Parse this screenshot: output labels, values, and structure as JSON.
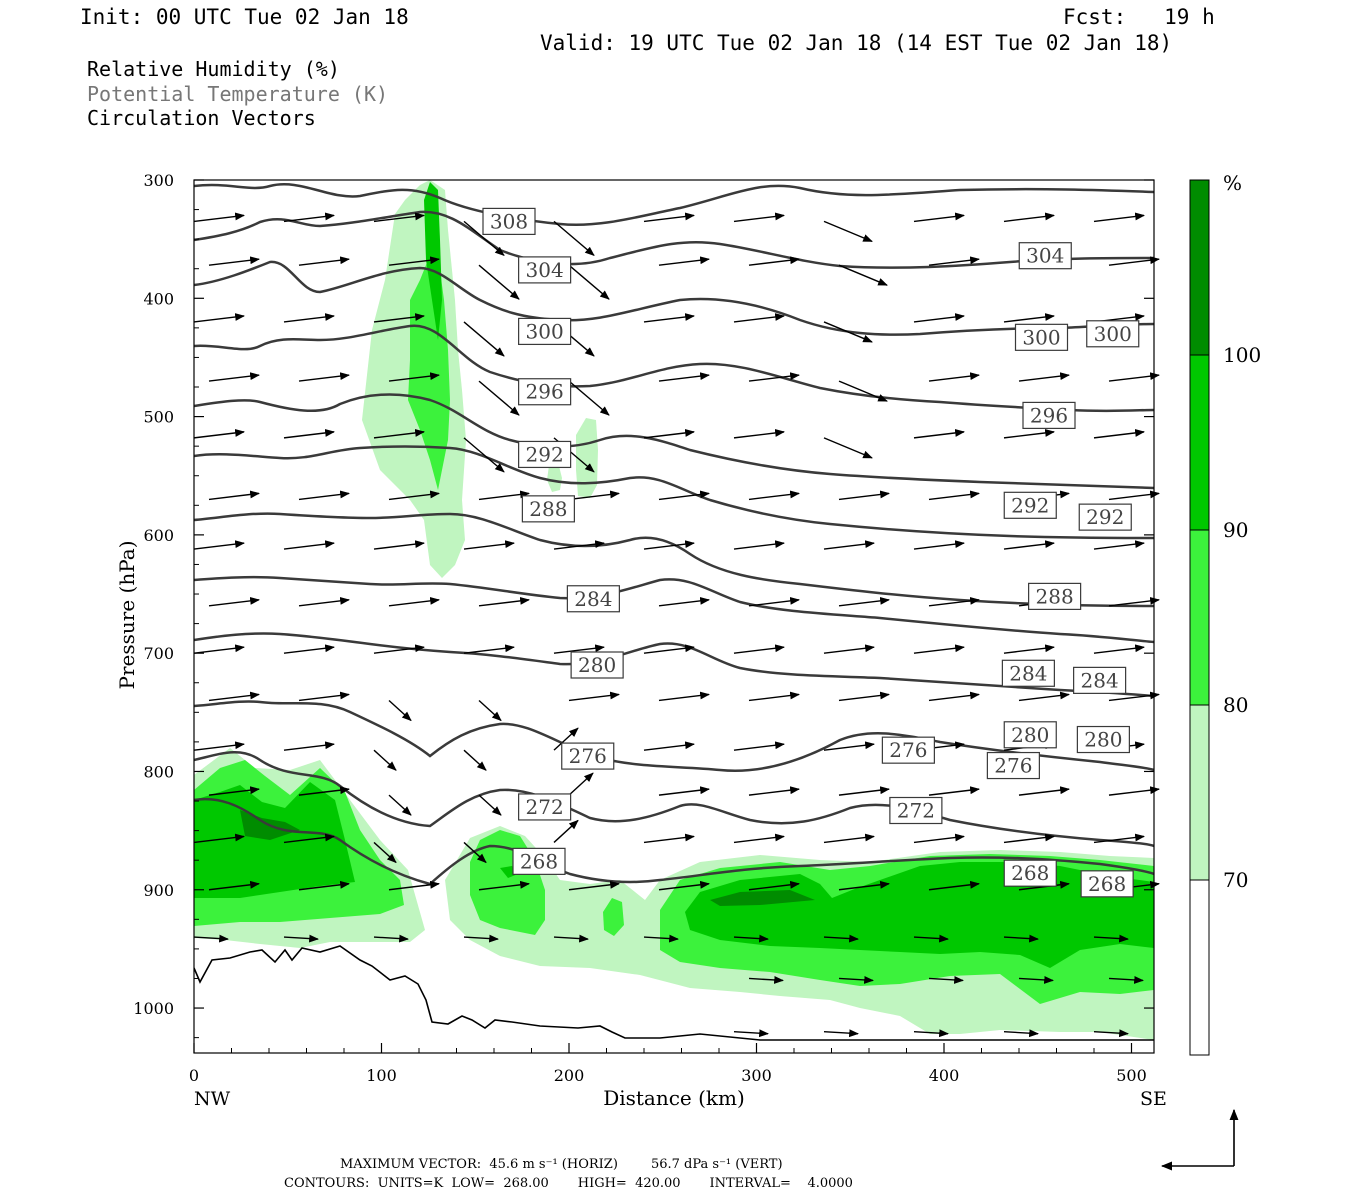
{
  "header": {
    "init": "Init: 00 UTC Tue 02 Jan 18",
    "fcst": "Fcst:   19 h",
    "valid": "Valid: 19 UTC Tue 02 Jan 18 (14 EST Tue 02 Jan 18)"
  },
  "legend": {
    "rh": "Relative Humidity (%)",
    "theta": "Potential Temperature (K)",
    "vectors": "Circulation Vectors"
  },
  "footer": {
    "max_vector": "MAXIMUM VECTOR:  45.6 m s⁻¹ (HORIZ)        56.7 dPa s⁻¹ (VERT)",
    "contours": "CONTOURS:  UNITS=K  LOW=  268.00       HIGH=  420.00       INTERVAL=    4.0000"
  },
  "colors": {
    "rh70": "#c0f5c0",
    "rh80": "#3cf23c",
    "rh90": "#00c800",
    "rh100": "#008c00",
    "contour": "#3a3a3a",
    "terrain": "#000000"
  },
  "chart_data": {
    "type": "contour",
    "xlabel": "Distance (km)",
    "ylabel": "Pressure (hPa)",
    "xlim": [
      0,
      512
    ],
    "ylim": [
      1038,
      300
    ],
    "y_reversed": true,
    "x_ticks": [
      "0",
      "100",
      "200",
      "300",
      "400",
      "500"
    ],
    "x_tick_values": [
      0,
      100,
      200,
      300,
      400,
      500
    ],
    "x_end_labels": {
      "left": "NW",
      "right": "SE"
    },
    "y_ticks": [
      "300",
      "400",
      "500",
      "600",
      "700",
      "800",
      "900",
      "1000"
    ],
    "y_tick_values": [
      300,
      400,
      500,
      600,
      700,
      800,
      900,
      1000
    ],
    "colorbar": {
      "unit": "%",
      "levels": [
        "70",
        "80",
        "90",
        "100"
      ],
      "level_values": [
        70,
        80,
        90,
        100
      ],
      "max": 110
    },
    "contour_labels": [
      {
        "text": "308",
        "x": 168,
        "p": 335
      },
      {
        "text": "304",
        "x": 187,
        "p": 376
      },
      {
        "text": "304",
        "x": 454,
        "p": 364
      },
      {
        "text": "300",
        "x": 187,
        "p": 428
      },
      {
        "text": "300",
        "x": 452,
        "p": 433
      },
      {
        "text": "300",
        "x": 490,
        "p": 430
      },
      {
        "text": "296",
        "x": 187,
        "p": 479
      },
      {
        "text": "296",
        "x": 456,
        "p": 499
      },
      {
        "text": "292",
        "x": 187,
        "p": 532
      },
      {
        "text": "292",
        "x": 446,
        "p": 575
      },
      {
        "text": "292",
        "x": 486,
        "p": 585
      },
      {
        "text": "288",
        "x": 189,
        "p": 578
      },
      {
        "text": "288",
        "x": 459,
        "p": 652
      },
      {
        "text": "284",
        "x": 213,
        "p": 654
      },
      {
        "text": "284",
        "x": 445,
        "p": 717
      },
      {
        "text": "284",
        "x": 483,
        "p": 723
      },
      {
        "text": "280",
        "x": 215,
        "p": 710
      },
      {
        "text": "280",
        "x": 446,
        "p": 769
      },
      {
        "text": "280",
        "x": 485,
        "p": 773
      },
      {
        "text": "276",
        "x": 210,
        "p": 787
      },
      {
        "text": "276",
        "x": 381,
        "p": 782
      },
      {
        "text": "276",
        "x": 437,
        "p": 795
      },
      {
        "text": "272",
        "x": 187,
        "p": 830
      },
      {
        "text": "272",
        "x": 385,
        "p": 833
      },
      {
        "text": "268",
        "x": 184,
        "p": 876
      },
      {
        "text": "268",
        "x": 446,
        "p": 886
      },
      {
        "text": "268",
        "x": 487,
        "p": 895
      }
    ],
    "theta_levels": [
      268,
      272,
      276,
      280,
      284,
      288,
      292,
      296,
      300,
      304,
      308
    ]
  }
}
